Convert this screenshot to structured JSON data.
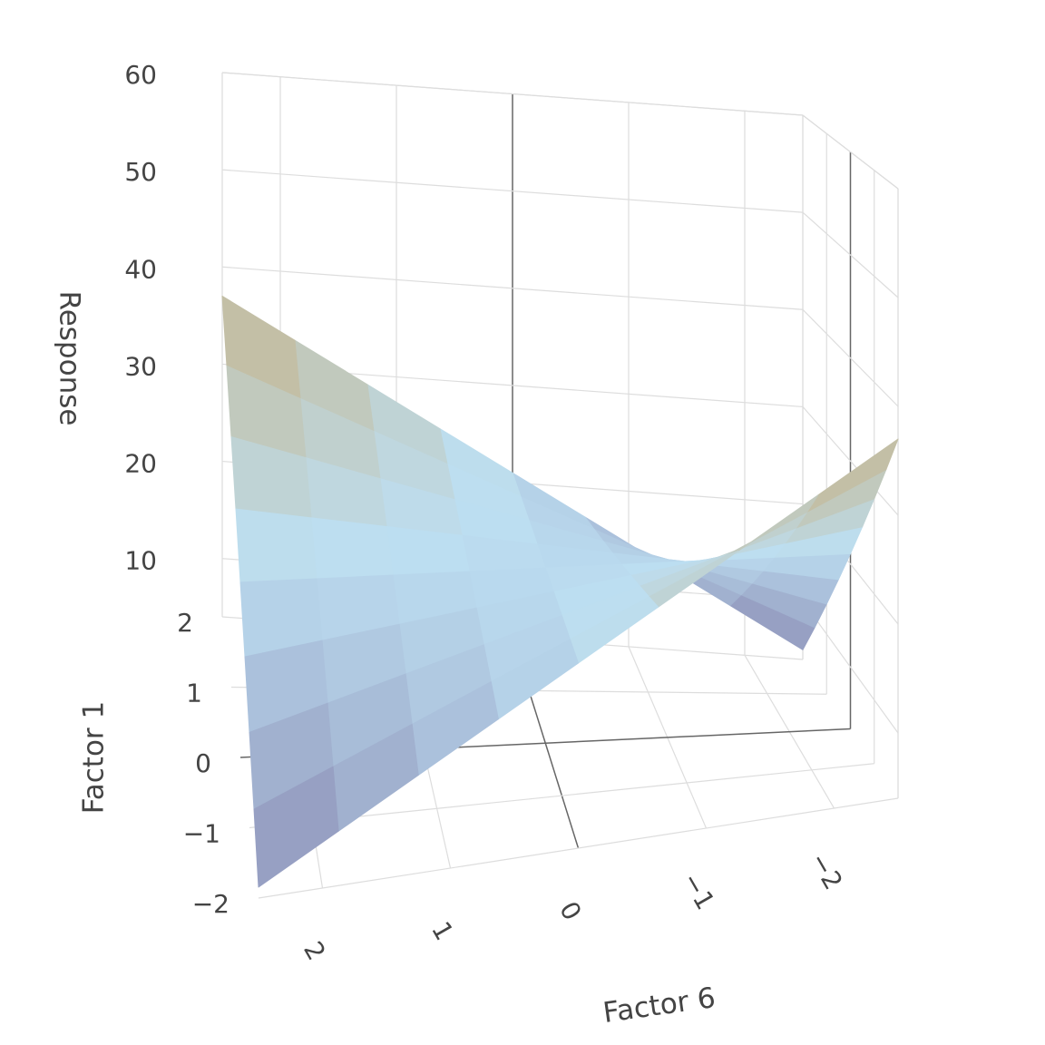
{
  "chart_data": {
    "type": "surface3d",
    "x_label": "Factor 6",
    "y_label": "Factor 1",
    "z_label": "Response",
    "x": [
      -2.5,
      -1.875,
      -1.25,
      -0.625,
      0,
      0.625,
      1.25,
      1.875,
      2.5
    ],
    "y": [
      -2,
      -1.5,
      -1,
      -0.5,
      0,
      0.5,
      1,
      1.5,
      2
    ],
    "z": [
      [
        37,
        33,
        29,
        25,
        21,
        17,
        13,
        9,
        5
      ],
      [
        33,
        30,
        27,
        24,
        21,
        18,
        15,
        12,
        9
      ],
      [
        29,
        27,
        25,
        23,
        21,
        19,
        17,
        15,
        13
      ],
      [
        25,
        24,
        23,
        22,
        21,
        20,
        19,
        18,
        17
      ],
      [
        21,
        21,
        21,
        21,
        21,
        21,
        21,
        21,
        21
      ],
      [
        17,
        18,
        19,
        20,
        21,
        22,
        23,
        24,
        25
      ],
      [
        13,
        15,
        17,
        19,
        21,
        23,
        25,
        27,
        29
      ],
      [
        9,
        12,
        15,
        18,
        21,
        24,
        27,
        30,
        33
      ],
      [
        5,
        9,
        13,
        17,
        21,
        25,
        29,
        33,
        37
      ]
    ],
    "colorscale": [
      [
        0,
        "#8a8ab2"
      ],
      [
        0.5,
        "#bddff2"
      ],
      [
        1,
        "#c7ab78"
      ]
    ],
    "xlim": [
      -2.5,
      2.5
    ],
    "xticks": [
      {
        "value": -2,
        "label": "−2"
      },
      {
        "value": -1,
        "label": "−1"
      },
      0,
      1,
      2
    ],
    "ylim": [
      -2,
      2
    ],
    "yticks": [
      {
        "value": -2,
        "label": "−2"
      },
      {
        "value": -1,
        "label": "−1"
      },
      0,
      1,
      2
    ],
    "zlim": [
      4,
      60
    ],
    "zticks": [
      10,
      20,
      30,
      40,
      50,
      60
    ],
    "grid": true
  }
}
